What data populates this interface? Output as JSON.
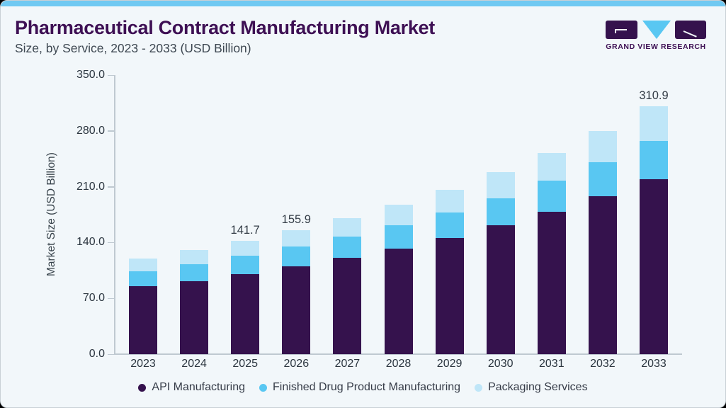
{
  "header": {
    "title": "Pharmaceutical Contract Manufacturing Market",
    "subtitle": "Size, by Service, 2023 - 2033 (USD Billion)"
  },
  "logo": {
    "wordmark": "GRAND VIEW RESEARCH"
  },
  "colors": {
    "accent_strip": "#70c9f2",
    "card_background": "#f2f7fa",
    "title": "#3e1054",
    "subtitle": "#3e4852",
    "axis_line": "#bfc9d1",
    "tick_text": "#2c3640",
    "api_manufacturing": "#35124d",
    "finished_drug_product_manufacturing": "#59c7f2",
    "packaging_services": "#bfe6f8"
  },
  "chart_data": {
    "type": "bar",
    "stacked": true,
    "title": "Pharmaceutical Contract Manufacturing Market Size, by Service, 2023 - 2033 (USD Billion)",
    "categories": [
      "2023",
      "2024",
      "2025",
      "2026",
      "2027",
      "2028",
      "2029",
      "2030",
      "2031",
      "2032",
      "2033"
    ],
    "series": [
      {
        "name": "API Manufacturing",
        "color": "#35124d",
        "values": [
          85.3,
          91.6,
          100.6,
          110.2,
          120.4,
          132.7,
          145.9,
          161.5,
          178.8,
          197.7,
          219.1
        ]
      },
      {
        "name": "Finished Drug Product Manufacturing",
        "color": "#59c7f2",
        "values": [
          18.6,
          21.1,
          22.5,
          24.7,
          26.8,
          28.8,
          32.0,
          34.3,
          38.4,
          42.7,
          48.5
        ]
      },
      {
        "name": "Packaging Services",
        "color": "#bfe6f8",
        "values": [
          16.0,
          17.9,
          18.6,
          21.0,
          23.3,
          26.0,
          28.3,
          32.1,
          34.8,
          39.5,
          43.3
        ]
      }
    ],
    "totals": [
      119.9,
      130.6,
      141.7,
      155.9,
      170.5,
      187.5,
      206.2,
      227.9,
      252.0,
      279.9,
      310.9
    ],
    "totals_shown": [
      null,
      null,
      "141.7",
      "155.9",
      null,
      null,
      null,
      null,
      null,
      null,
      "310.9"
    ],
    "ylabel": "Market Size (USD Billion)",
    "yticks": [
      "0.0",
      "70.0",
      "140.0",
      "210.0",
      "280.0",
      "350.0"
    ],
    "ylim": [
      0,
      350
    ],
    "grid": false,
    "legend_position": "bottom"
  }
}
